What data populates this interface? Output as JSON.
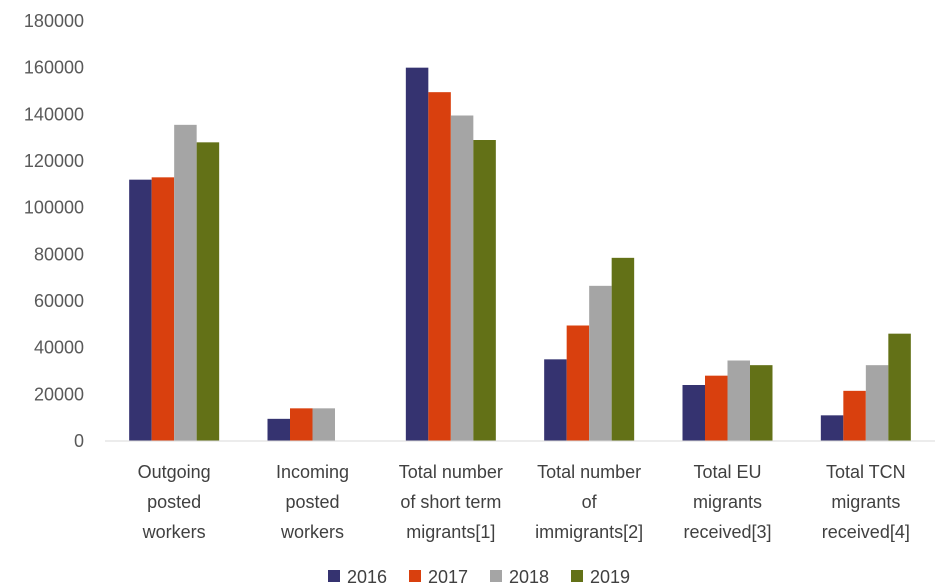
{
  "chart_data": {
    "type": "bar",
    "title": "",
    "xlabel": "",
    "ylabel": "",
    "ylim": [
      0,
      180000
    ],
    "yticks": [
      0,
      20000,
      40000,
      60000,
      80000,
      100000,
      120000,
      140000,
      160000,
      180000
    ],
    "grid": false,
    "legend_position": "bottom",
    "categories": [
      [
        "Outgoing",
        "posted",
        "workers"
      ],
      [
        "Incoming",
        "posted",
        "workers"
      ],
      [
        "Total number",
        "of short term",
        "migrants[1]"
      ],
      [
        "Total number",
        "of",
        "immigrants[2]"
      ],
      [
        "Total EU",
        "migrants",
        "received[3]"
      ],
      [
        "Total TCN",
        "migrants",
        "received[4]"
      ]
    ],
    "series": [
      {
        "name": "2016",
        "color": "#353370",
        "values": [
          112000,
          9500,
          160000,
          35000,
          24000,
          11000
        ]
      },
      {
        "name": "2017",
        "color": "#d9400e",
        "values": [
          113000,
          14000,
          149500,
          49500,
          28000,
          21500
        ]
      },
      {
        "name": "2018",
        "color": "#a5a5a5",
        "values": [
          135500,
          14000,
          139500,
          66500,
          34500,
          32500
        ]
      },
      {
        "name": "2019",
        "color": "#637117",
        "values": [
          128000,
          0,
          129000,
          78500,
          32500,
          46000
        ]
      }
    ]
  }
}
